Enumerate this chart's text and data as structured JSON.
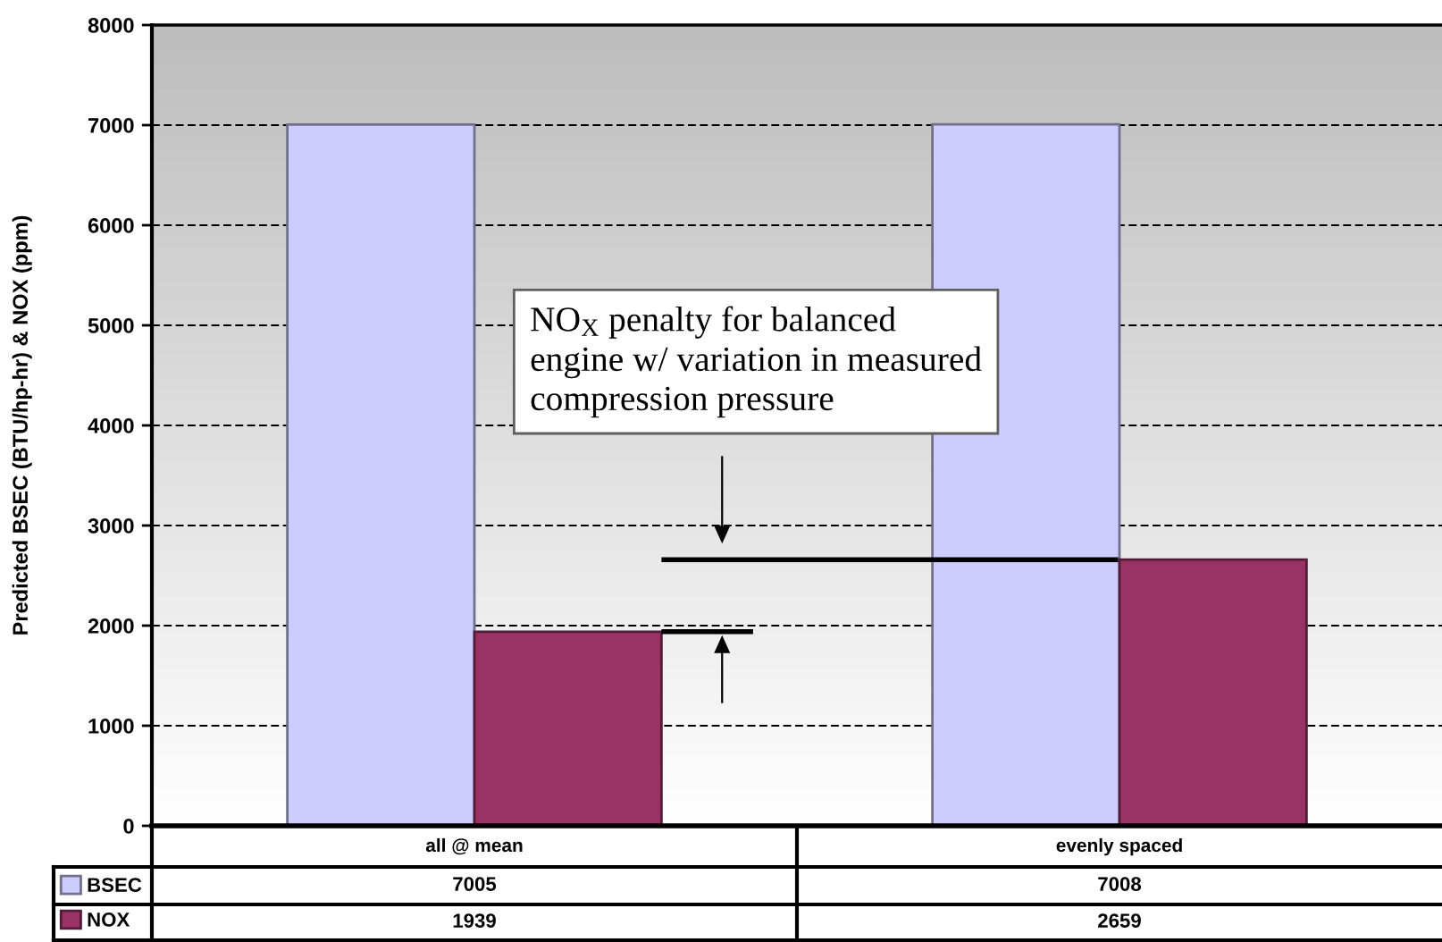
{
  "chart_data": {
    "type": "bar",
    "ylabel": "Predicted BSEC (BTU/hp-hr) & NOX (ppm)",
    "categories": [
      "all @ mean",
      "evenly spaced"
    ],
    "series": [
      {
        "name": "BSEC",
        "color": "#ccccff",
        "values": [
          7005,
          7008
        ]
      },
      {
        "name": "NOX",
        "color": "#993366",
        "values": [
          1939,
          2659
        ]
      }
    ],
    "ylim": [
      0,
      8000
    ],
    "yticks": [
      0,
      1000,
      2000,
      3000,
      4000,
      5000,
      6000,
      7000,
      8000
    ],
    "grid": "y",
    "data_labels": true,
    "legend": "bottom left",
    "annotations": [
      "NO$_{X}$ penalty for balanced\nengine w/ variation in measured\ncompression pressure"
    ]
  }
}
